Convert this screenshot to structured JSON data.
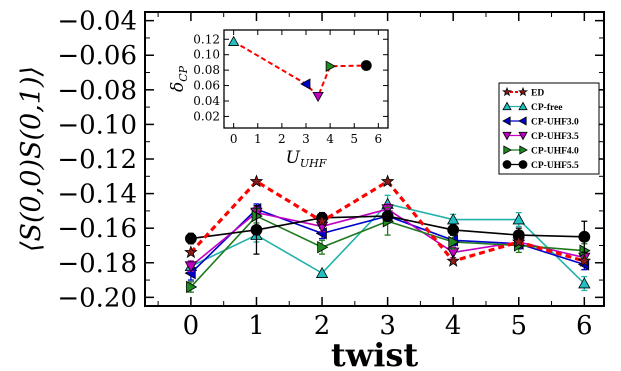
{
  "chart_data": [
    {
      "type": "line",
      "xlabel": "twist",
      "ylabel": "⟨S(0,0)S(0,1)⟩",
      "x": [
        0,
        1,
        2,
        3,
        4,
        5,
        6
      ],
      "xticks": [
        "0",
        "1",
        "2",
        "3",
        "4",
        "5",
        "6"
      ],
      "yticks": [
        "−0.04",
        "−0.06",
        "−0.08",
        "−0.10",
        "−0.12",
        "−0.14",
        "−0.16",
        "−0.18",
        "−0.20"
      ],
      "xlim": [
        -0.7,
        6.3
      ],
      "ylim": [
        -0.205,
        -0.035
      ],
      "legend_position": "right",
      "series": [
        {
          "name": "ED",
          "color": "#b22222",
          "line_color": "#ff0000",
          "dashed": true,
          "marker": "star",
          "marker_fill": "#8b1a1a",
          "values": [
            -0.174,
            -0.133,
            -0.156,
            -0.133,
            -0.179,
            -0.168,
            -0.179
          ],
          "errors": [
            0,
            0,
            0,
            0,
            0,
            0,
            0
          ]
        },
        {
          "name": "CP-free",
          "color": "#20b2aa",
          "marker": "triangle-up",
          "marker_fill": "#20c0c0",
          "values": [
            -0.182,
            -0.164,
            -0.186,
            -0.146,
            -0.155,
            -0.155,
            -0.192
          ],
          "errors": [
            0.003,
            0.004,
            0,
            0.005,
            0.003,
            0.004,
            0.004
          ]
        },
        {
          "name": "CP-UHF3.0",
          "color": "#0000cd",
          "marker": "triangle-left",
          "marker_fill": "#0000cd",
          "values": [
            -0.186,
            -0.149,
            -0.163,
            -0.153,
            -0.167,
            -0.169,
            -0.181
          ],
          "errors": [
            0.004,
            0.003,
            0.003,
            0.004,
            0.003,
            0.003,
            0.003
          ]
        },
        {
          "name": "CP-UHF3.5",
          "color": "#c000c0",
          "marker": "triangle-down",
          "marker_fill": "#c000c0",
          "values": [
            -0.182,
            -0.151,
            -0.159,
            -0.149,
            -0.174,
            -0.168,
            -0.177
          ],
          "errors": [
            0.003,
            0.003,
            0.003,
            0.003,
            0.003,
            0.003,
            0.003
          ]
        },
        {
          "name": "CP-UHF4.0",
          "color": "#1f7a1f",
          "marker": "triangle-right",
          "marker_fill": "#1f8a1f",
          "values": [
            -0.194,
            -0.153,
            -0.171,
            -0.156,
            -0.168,
            -0.17,
            -0.173
          ],
          "errors": [
            0.003,
            0.004,
            0.004,
            0.008,
            0.004,
            0.004,
            0.004
          ]
        },
        {
          "name": "CP-UHF5.5",
          "color": "#000000",
          "marker": "circle",
          "marker_fill": "#000000",
          "values": [
            -0.166,
            -0.161,
            -0.154,
            -0.153,
            -0.161,
            -0.164,
            -0.165
          ],
          "errors": [
            0.003,
            0.014,
            0.003,
            0.003,
            0.003,
            0.004,
            0.009
          ]
        }
      ]
    },
    {
      "type": "line",
      "xlabel": "U_UHF",
      "ylabel": "δ_CP",
      "xticks": [
        "0",
        "1",
        "2",
        "3",
        "4",
        "5",
        "6"
      ],
      "yticks": [
        "0.02",
        "0.04",
        "0.06",
        "0.08",
        "0.10",
        "0.12"
      ],
      "xlim": [
        -0.4,
        6.4
      ],
      "ylim": [
        0.005,
        0.132
      ],
      "line_color": "#ff0000",
      "dashed": true,
      "points": [
        {
          "x": 0,
          "y": 0.117,
          "marker": "triangle-up",
          "color": "#20c0c0"
        },
        {
          "x": 3.0,
          "y": 0.062,
          "marker": "triangle-left",
          "color": "#0000cd"
        },
        {
          "x": 3.5,
          "y": 0.046,
          "marker": "triangle-down",
          "color": "#c000c0"
        },
        {
          "x": 4.0,
          "y": 0.085,
          "marker": "triangle-right",
          "color": "#1f8a1f"
        },
        {
          "x": 5.5,
          "y": 0.086,
          "marker": "circle",
          "color": "#000000"
        }
      ]
    }
  ]
}
